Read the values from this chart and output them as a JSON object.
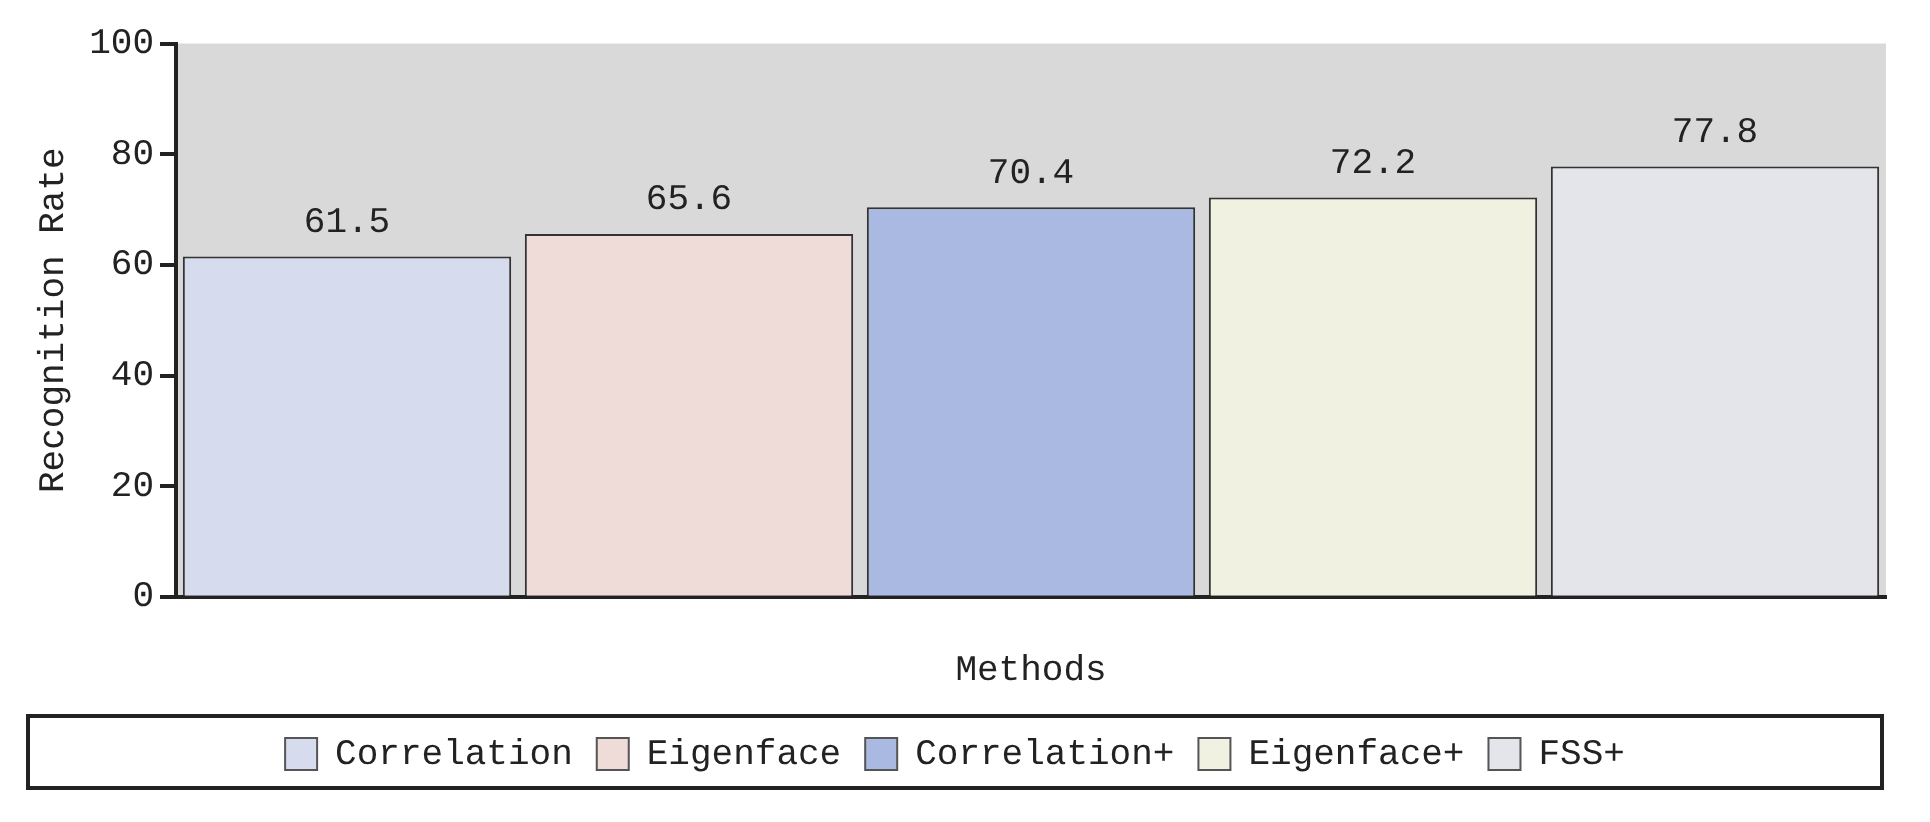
{
  "chart_data": {
    "type": "bar",
    "xlabel": "Methods",
    "ylabel": "Recognition Rate",
    "categories": [
      null,
      null,
      null,
      null,
      null
    ],
    "series": [
      {
        "name": "Correlation",
        "color": "#d6dbee",
        "values": [
          61.5,
          null,
          null,
          null,
          null
        ]
      },
      {
        "name": "Eigenface",
        "color": "#efdcd8",
        "values": [
          null,
          65.6,
          null,
          null,
          null
        ]
      },
      {
        "name": "Correlation+",
        "color": "#a9b9e1",
        "values": [
          null,
          null,
          70.4,
          null,
          null
        ]
      },
      {
        "name": "Eigenface+",
        "color": "#f1f1e2",
        "values": [
          null,
          null,
          null,
          72.2,
          null
        ]
      },
      {
        "name": "FSS+",
        "color": "#e3e5ea",
        "values": [
          null,
          null,
          null,
          null,
          77.8
        ]
      }
    ],
    "ylim": [
      0,
      100
    ],
    "yticks": [
      0,
      20,
      40,
      60,
      80,
      100
    ],
    "data_labels": true,
    "legend": "bottom",
    "grid": false
  }
}
